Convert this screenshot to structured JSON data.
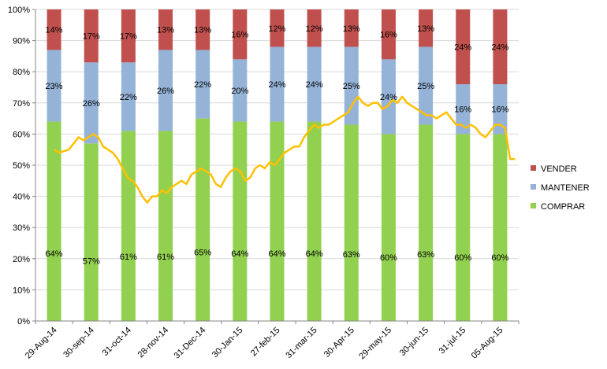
{
  "chart_data": {
    "type": "bar",
    "stacked": true,
    "categories": [
      "29-Aug-14",
      "30-sep-14",
      "31-oct-14",
      "28-nov-14",
      "31-Dec-14",
      "30-Jan-15",
      "27-feb-15",
      "31-mar-15",
      "30-Apr-15",
      "29-may-15",
      "30-jun-15",
      "31-jul-15",
      "05-Aug-15"
    ],
    "series": [
      {
        "name": "COMPRAR",
        "color": "#92d050",
        "values": [
          64,
          57,
          61,
          61,
          65,
          64,
          64,
          64,
          63,
          60,
          63,
          60,
          60
        ],
        "labels": [
          "64%",
          "57%",
          "61%",
          "61%",
          "65%",
          "64%",
          "64%",
          "64%",
          "63%",
          "60%",
          "63%",
          "60%",
          "60%"
        ]
      },
      {
        "name": "MANTENER",
        "color": "#95b3d7",
        "values": [
          23,
          26,
          22,
          26,
          22,
          20,
          24,
          24,
          25,
          24,
          25,
          16,
          16
        ],
        "labels": [
          "23%",
          "26%",
          "22%",
          "26%",
          "22%",
          "20%",
          "24%",
          "24%",
          "25%",
          "24%",
          "25%",
          "16%",
          "16%"
        ]
      },
      {
        "name": "VENDER",
        "color": "#c0504d",
        "values": [
          14,
          17,
          17,
          13,
          13,
          16,
          12,
          12,
          13,
          16,
          13,
          24,
          24
        ],
        "labels": [
          "14%",
          "17%",
          "17%",
          "13%",
          "13%",
          "16%",
          "12%",
          "12%",
          "13%",
          "16%",
          "13%",
          "24%",
          "24%"
        ]
      }
    ],
    "ylim": [
      0,
      100
    ],
    "yticks": [
      0,
      10,
      20,
      30,
      40,
      50,
      60,
      70,
      80,
      90,
      100
    ],
    "ytick_labels": [
      "0%",
      "10%",
      "20%",
      "30%",
      "40%",
      "50%",
      "60%",
      "70%",
      "80%",
      "90%",
      "100%"
    ],
    "legend": {
      "placement": "right",
      "order": [
        "VENDER",
        "MANTENER",
        "COMPRAR"
      ]
    },
    "overlay_line": {
      "color": "#ffc000",
      "x_start": 0.0,
      "x_end": 12.4,
      "values": [
        55,
        54,
        54.5,
        55,
        57,
        59,
        58,
        59,
        60,
        59,
        56,
        55,
        54,
        52,
        49,
        46,
        45,
        43,
        40,
        38,
        40,
        40,
        42,
        41,
        43,
        44,
        45,
        44,
        47,
        48,
        49,
        48,
        47,
        44,
        43,
        46,
        48,
        49,
        48,
        45,
        46,
        49,
        50,
        49,
        51,
        50,
        52,
        54,
        55,
        56,
        56,
        59,
        61,
        63,
        62,
        63,
        63,
        64,
        65,
        66,
        67,
        70,
        72,
        70,
        69,
        70,
        70,
        68,
        69,
        71,
        70,
        72,
        70,
        69,
        68,
        67,
        66,
        66,
        65,
        66,
        67,
        65,
        63,
        63,
        62,
        63,
        62,
        60,
        59,
        61,
        63,
        63,
        62,
        52,
        52
      ]
    }
  }
}
